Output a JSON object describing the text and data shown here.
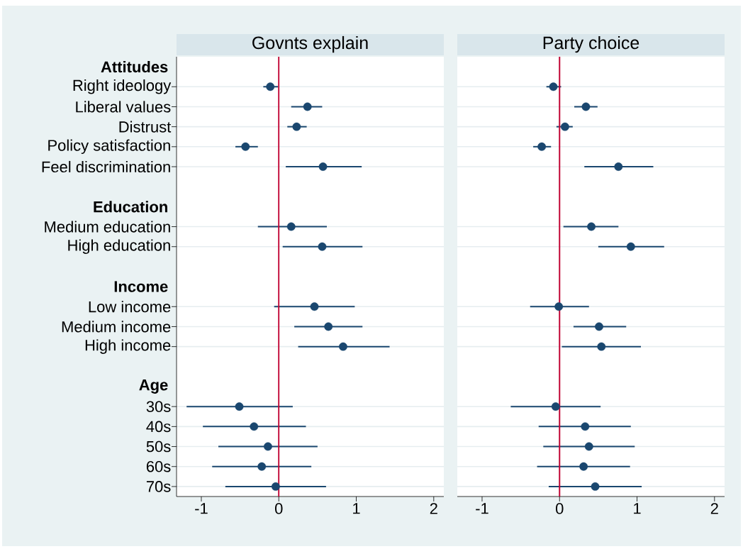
{
  "chart_data": [
    {
      "type": "scatter",
      "orientation": "horizontal",
      "title": "Govnts explain",
      "categories": [
        "Attitudes",
        "Right ideology",
        "Liberal values",
        "Distrust",
        "Policy satisfaction",
        "Feel discrimination",
        null,
        "Education",
        "Medium education",
        "High education",
        null,
        "Income",
        "Low income",
        "Medium income",
        "High income",
        null,
        "Age",
        "30s",
        "40s",
        "50s",
        "60s",
        "70s"
      ],
      "series": [
        {
          "color": "#1a476f",
          "values": [
            null,
            -0.11,
            0.37,
            0.23,
            -0.43,
            0.57,
            null,
            null,
            0.16,
            0.56,
            null,
            null,
            0.46,
            0.64,
            0.83,
            null,
            null,
            -0.51,
            -0.32,
            -0.14,
            -0.22,
            -0.04
          ],
          "errors": [
            null,
            [
              -0.2,
              -0.01
            ],
            [
              0.16,
              0.56
            ],
            [
              0.11,
              0.36
            ],
            [
              -0.56,
              -0.27
            ],
            [
              0.09,
              1.07
            ],
            null,
            null,
            [
              -0.27,
              0.62
            ],
            [
              0.05,
              1.08
            ],
            null,
            null,
            [
              -0.06,
              0.98
            ],
            [
              0.2,
              1.08
            ],
            [
              0.25,
              1.43
            ],
            null,
            null,
            [
              -1.19,
              0.18
            ],
            [
              -0.98,
              0.35
            ],
            [
              -0.78,
              0.5
            ],
            [
              -0.86,
              0.42
            ],
            [
              -0.69,
              0.61
            ]
          ]
        }
      ],
      "xlim": [
        -1.32,
        2.13
      ],
      "xticks": [
        -1,
        0,
        1,
        2
      ],
      "ref_lines": [
        {
          "axis": "x",
          "value": 0,
          "color": "#c10534"
        }
      ],
      "grid": "y",
      "marker": "circle"
    },
    {
      "type": "scatter",
      "orientation": "horizontal",
      "title": "Party choice",
      "categories": [
        null,
        null,
        null,
        null,
        null,
        null,
        null,
        null,
        null,
        null,
        null,
        null,
        null,
        null,
        null,
        null,
        null,
        null,
        null,
        null,
        null,
        null
      ],
      "series": [
        {
          "color": "#1a476f",
          "values": [
            null,
            -0.08,
            0.34,
            0.07,
            -0.23,
            0.76,
            null,
            null,
            0.41,
            0.92,
            null,
            null,
            -0.01,
            0.51,
            0.54,
            null,
            null,
            -0.05,
            0.33,
            0.38,
            0.31,
            0.46
          ],
          "errors": [
            null,
            [
              -0.17,
              0.02
            ],
            [
              0.19,
              0.49
            ],
            [
              -0.04,
              0.17
            ],
            [
              -0.34,
              -0.11
            ],
            [
              0.32,
              1.21
            ],
            null,
            null,
            [
              0.05,
              0.76
            ],
            [
              0.5,
              1.35
            ],
            null,
            null,
            [
              -0.38,
              0.38
            ],
            [
              0.18,
              0.86
            ],
            [
              0.03,
              1.05
            ],
            null,
            null,
            [
              -0.63,
              0.53
            ],
            [
              -0.27,
              0.92
            ],
            [
              -0.21,
              0.97
            ],
            [
              -0.29,
              0.91
            ],
            [
              -0.14,
              1.06
            ]
          ]
        }
      ],
      "xlim": [
        -1.32,
        2.13
      ],
      "xticks": [
        -1,
        0,
        1,
        2
      ],
      "ref_lines": [
        {
          "axis": "x",
          "value": 0,
          "color": "#c10534"
        }
      ],
      "grid": "y",
      "marker": "circle",
      "tick_labels": "x"
    }
  ]
}
